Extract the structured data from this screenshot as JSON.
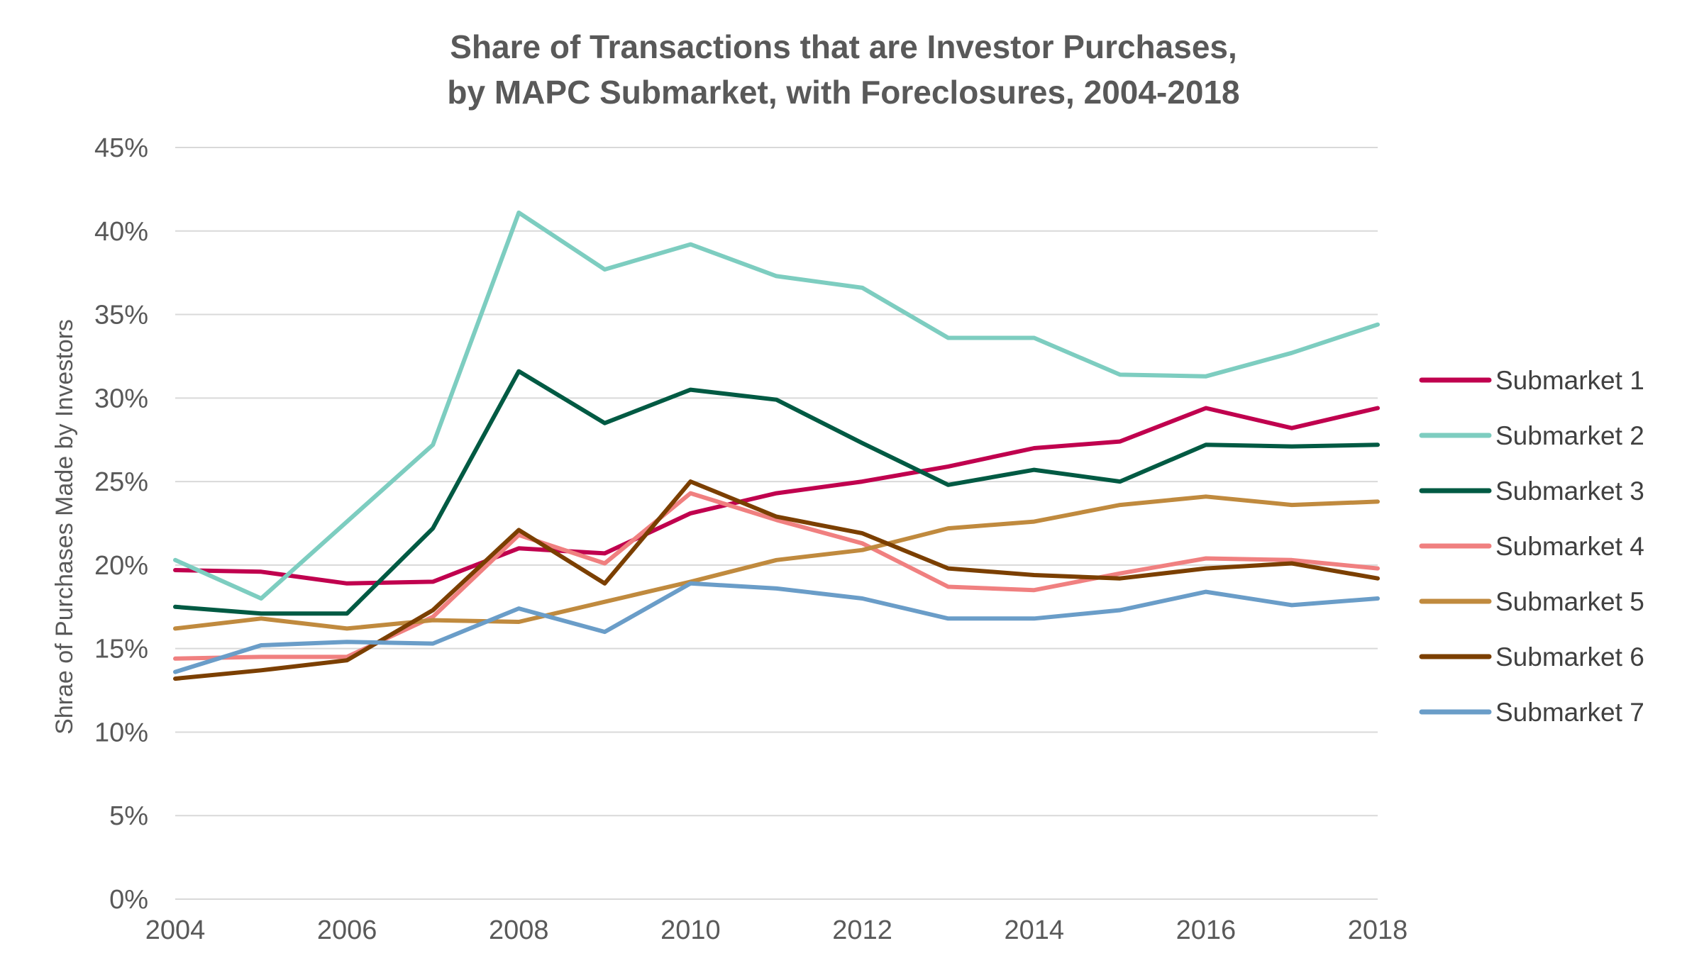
{
  "chart_data": {
    "type": "line",
    "title": "Share of Transactions that are Investor Purchases,",
    "subtitle": "by MAPC Submarket, with Foreclosures, 2004-2018",
    "xlabel": "",
    "ylabel": "Shrae of Purchases Made by Investors",
    "x": [
      2004,
      2005,
      2006,
      2007,
      2008,
      2009,
      2010,
      2011,
      2012,
      2013,
      2014,
      2015,
      2016,
      2017,
      2018
    ],
    "x_tick_labels": [
      "2004",
      "2006",
      "2008",
      "2010",
      "2012",
      "2014",
      "2016",
      "2018"
    ],
    "x_ticks": [
      2004,
      2006,
      2008,
      2010,
      2012,
      2014,
      2016,
      2018
    ],
    "xlim": [
      2004,
      2018
    ],
    "ylim": [
      0,
      45
    ],
    "y_ticks": [
      0,
      5,
      10,
      15,
      20,
      25,
      30,
      35,
      40,
      45
    ],
    "y_tick_labels": [
      "0%",
      "5%",
      "10%",
      "15%",
      "20%",
      "25%",
      "30%",
      "35%",
      "40%",
      "45%"
    ],
    "grid": true,
    "legend_position": "right",
    "series": [
      {
        "name": "Submarket 1",
        "color": "#C0004E",
        "values": [
          19.7,
          19.6,
          18.9,
          19.0,
          21.0,
          20.7,
          23.1,
          24.3,
          25.0,
          25.9,
          27.0,
          27.4,
          29.4,
          28.2,
          29.4
        ]
      },
      {
        "name": "Submarket 2",
        "color": "#7DCDC0",
        "values": [
          20.3,
          18.0,
          22.6,
          27.2,
          41.1,
          37.7,
          39.2,
          37.3,
          36.6,
          33.6,
          33.6,
          31.4,
          31.3,
          32.7,
          34.4
        ]
      },
      {
        "name": "Submarket 3",
        "color": "#005A43",
        "values": [
          17.5,
          17.1,
          17.1,
          22.2,
          31.6,
          28.5,
          30.5,
          29.9,
          27.3,
          24.8,
          25.7,
          25.0,
          27.2,
          27.1,
          27.2
        ]
      },
      {
        "name": "Submarket 4",
        "color": "#F08080",
        "values": [
          14.4,
          14.5,
          14.5,
          16.9,
          21.8,
          20.1,
          24.3,
          22.7,
          21.3,
          18.7,
          18.5,
          19.5,
          20.4,
          20.3,
          19.8
        ]
      },
      {
        "name": "Submarket 5",
        "color": "#C08A3E",
        "values": [
          16.2,
          16.8,
          16.2,
          16.7,
          16.6,
          17.8,
          19.0,
          20.3,
          20.9,
          22.2,
          22.6,
          23.6,
          24.1,
          23.6,
          23.8
        ]
      },
      {
        "name": "Submarket 6",
        "color": "#7B3F00",
        "values": [
          13.2,
          13.7,
          14.3,
          17.3,
          22.1,
          18.9,
          25.0,
          22.9,
          21.9,
          19.8,
          19.4,
          19.2,
          19.8,
          20.1,
          19.2
        ]
      },
      {
        "name": "Submarket 7",
        "color": "#6A9DC8",
        "values": [
          13.6,
          15.2,
          15.4,
          15.3,
          17.4,
          16.0,
          18.9,
          18.6,
          18.0,
          16.8,
          16.8,
          17.3,
          18.4,
          17.6,
          18.0
        ]
      }
    ]
  }
}
